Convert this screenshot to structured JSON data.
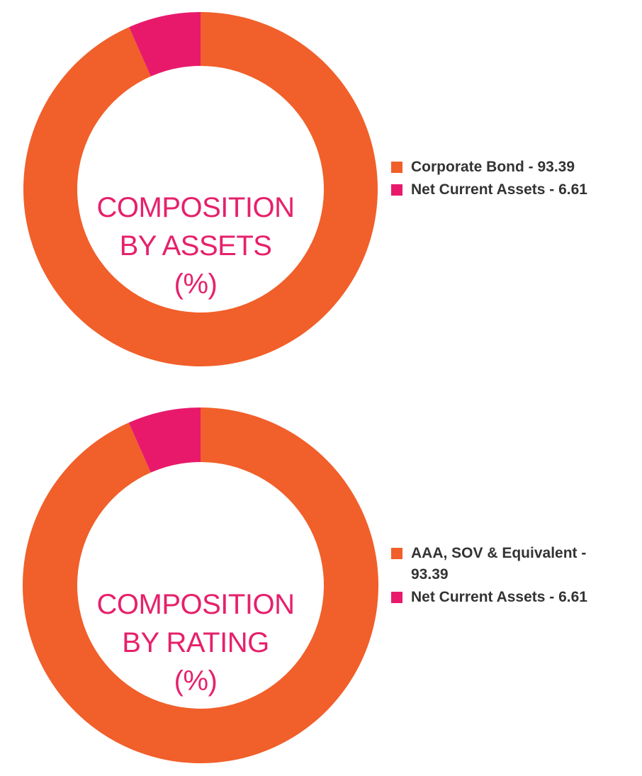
{
  "colors": {
    "orange": "#f15f2a",
    "pink": "#e8196b"
  },
  "chart_data": [
    {
      "type": "pie",
      "title_lines": [
        "COMPOSITION",
        "BY ASSETS",
        "(%)"
      ],
      "series": [
        {
          "name": "Corporate Bond",
          "value": 93.39,
          "label": "Corporate Bond - 93.39",
          "color": "#f15f2a"
        },
        {
          "name": "Net Current Assets",
          "value": 6.61,
          "label": "Net Current Assets - 6.61",
          "color": "#e8196b"
        }
      ],
      "legend_position": "right"
    },
    {
      "type": "pie",
      "title_lines": [
        "COMPOSITION",
        "BY RATING",
        "(%)"
      ],
      "series": [
        {
          "name": "AAA, SOV & Equivalent",
          "value": 93.39,
          "label": "AAA, SOV & Equivalent - 93.39",
          "color": "#f15f2a"
        },
        {
          "name": "Net Current Assets",
          "value": 6.61,
          "label": "Net Current Assets - 6.61",
          "color": "#e8196b"
        }
      ],
      "legend_position": "right"
    }
  ]
}
